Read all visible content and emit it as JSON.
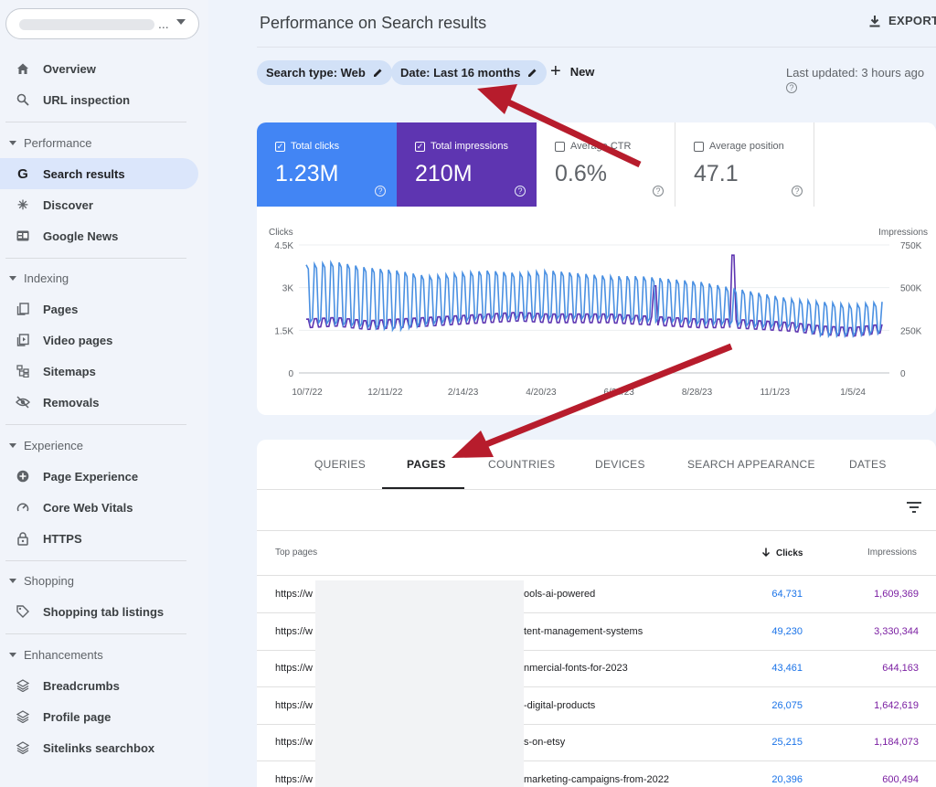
{
  "sidebar": {
    "property_dots": "...",
    "top_items": [
      {
        "label": "Overview",
        "icon": "home-icon"
      },
      {
        "label": "URL inspection",
        "icon": "search-icon"
      }
    ],
    "sections": [
      {
        "title": "Performance",
        "items": [
          "Search results",
          "Discover",
          "Google News"
        ]
      },
      {
        "title": "Indexing",
        "items": [
          "Pages",
          "Video pages",
          "Sitemaps",
          "Removals"
        ]
      },
      {
        "title": "Experience",
        "items": [
          "Page Experience",
          "Core Web Vitals",
          "HTTPS"
        ]
      },
      {
        "title": "Shopping",
        "items": [
          "Shopping tab listings"
        ]
      },
      {
        "title": "Enhancements",
        "items": [
          "Breadcrumbs",
          "Profile page",
          "Sitelinks searchbox"
        ]
      }
    ],
    "active_item": "Search results"
  },
  "header": {
    "title": "Performance on Search results",
    "export_label": "EXPORT"
  },
  "filters": {
    "search_type": "Search type: Web",
    "date": "Date: Last 16 months",
    "new_label": "New",
    "last_updated": "Last updated: 3 hours ago"
  },
  "metrics": {
    "clicks": {
      "label": "Total clicks",
      "value": "1.23M",
      "checked": true
    },
    "impressions": {
      "label": "Total impressions",
      "value": "210M",
      "checked": true
    },
    "ctr": {
      "label": "Average CTR",
      "value": "0.6%",
      "checked": false
    },
    "position": {
      "label": "Average position",
      "value": "47.1",
      "checked": false
    }
  },
  "chart_data": {
    "type": "line",
    "left_axis_label": "Clicks",
    "right_axis_label": "Impressions",
    "y_ticks_left": [
      "4.5K",
      "3K",
      "1.5K",
      "0"
    ],
    "y_ticks_right": [
      "750K",
      "500K",
      "250K",
      "0"
    ],
    "ylim_left": [
      0,
      4500
    ],
    "ylim_right": [
      0,
      750000
    ],
    "x_ticks": [
      "10/7/22",
      "12/11/22",
      "2/14/23",
      "4/20/23",
      "6/24/23",
      "8/28/23",
      "11/1/23",
      "1/5/24"
    ],
    "series": [
      {
        "name": "Clicks",
        "color": "#4a90e2",
        "axis": "left",
        "approx_weekly_peaks": [
          3800,
          3900,
          3700,
          3600,
          3400,
          3500,
          3600,
          3500,
          3600,
          3500,
          3400,
          3400,
          3300,
          3200,
          3000,
          2800,
          2600,
          2500,
          2400,
          2500
        ],
        "approx_weekly_troughs": [
          1800,
          1700,
          1600,
          1500,
          1700,
          1800,
          1900,
          1900,
          1900,
          1900,
          1900,
          1800,
          1800,
          1700,
          1700,
          1600,
          1600,
          1300,
          1300,
          1400
        ]
      },
      {
        "name": "Impressions",
        "color": "#5e35b1",
        "axis": "right",
        "approx_level": [
          290000,
          300000,
          280000,
          290000,
          300000,
          310000,
          320000,
          330000,
          320000,
          320000,
          320000,
          310000,
          300000,
          290000,
          290000,
          280000,
          270000,
          250000,
          240000,
          260000
        ],
        "spikes": [
          {
            "x": "8/1/23",
            "value": 510000
          },
          {
            "x": "10/1/23",
            "value": 690000
          }
        ]
      }
    ]
  },
  "table": {
    "tabs": [
      "QUERIES",
      "PAGES",
      "COUNTRIES",
      "DEVICES",
      "SEARCH APPEARANCE",
      "DATES"
    ],
    "active_tab": "PAGES",
    "headers": {
      "page": "Top pages",
      "clicks": "Clicks",
      "impressions": "Impressions"
    },
    "rows": [
      {
        "url_start": "https://w",
        "url_end": "ools-ai-powered",
        "clicks": "64,731",
        "impressions": "1,609,369"
      },
      {
        "url_start": "https://w",
        "url_end": "tent-management-systems",
        "clicks": "49,230",
        "impressions": "3,330,344"
      },
      {
        "url_start": "https://w",
        "url_end": "nmercial-fonts-for-2023",
        "clicks": "43,461",
        "impressions": "644,163"
      },
      {
        "url_start": "https://w",
        "url_end": "-digital-products",
        "clicks": "26,075",
        "impressions": "1,642,619"
      },
      {
        "url_start": "https://w",
        "url_end": "s-on-etsy",
        "clicks": "25,215",
        "impressions": "1,184,073"
      },
      {
        "url_start": "https://w",
        "url_end": "marketing-campaigns-from-2022",
        "clicks": "20,396",
        "impressions": "600,494"
      }
    ]
  },
  "colors": {
    "clicks": "#4285f4",
    "impressions": "#5e35b1",
    "annotation_arrow": "#b71c2c"
  }
}
